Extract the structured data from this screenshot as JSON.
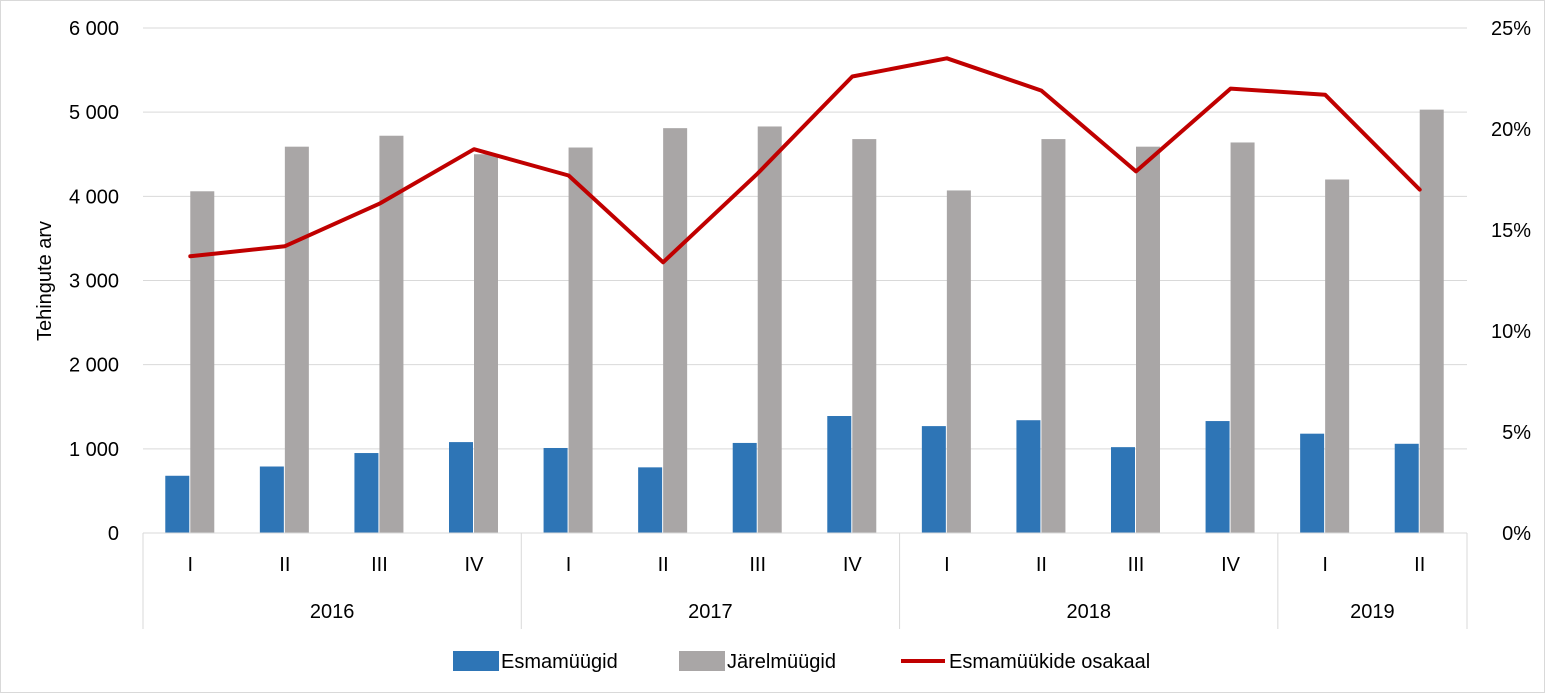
{
  "chart_data": {
    "type": "bar",
    "ylabel": "Tehingute arv",
    "y_left": {
      "range": [
        0,
        6000
      ],
      "ticks": [
        "0",
        "1 000",
        "2 000",
        "3 000",
        "4 000",
        "5 000",
        "6 000"
      ]
    },
    "y_right": {
      "range": [
        0,
        25
      ],
      "ticks": [
        "0%",
        "5%",
        "10%",
        "15%",
        "20%",
        "25%"
      ]
    },
    "grid": true,
    "legend_position": "bottom",
    "categories": [
      "I",
      "II",
      "III",
      "IV",
      "I",
      "II",
      "III",
      "IV",
      "I",
      "II",
      "III",
      "IV",
      "I",
      "II"
    ],
    "groups": [
      {
        "label": "2016",
        "size": 4
      },
      {
        "label": "2017",
        "size": 4
      },
      {
        "label": "2018",
        "size": 4
      },
      {
        "label": "2019",
        "size": 2
      }
    ],
    "series": [
      {
        "name": "Esmamüügid",
        "type": "bar",
        "axis": "left",
        "color": "#2e75b6",
        "values": [
          680,
          790,
          950,
          1080,
          1010,
          780,
          1070,
          1390,
          1270,
          1340,
          1020,
          1330,
          1180,
          1060
        ]
      },
      {
        "name": "Järelmüügid",
        "type": "bar",
        "axis": "left",
        "color": "#a9a6a6",
        "values": [
          4060,
          4590,
          4720,
          4500,
          4580,
          4810,
          4830,
          4680,
          4070,
          4680,
          4590,
          4640,
          4200,
          5030
        ]
      },
      {
        "name": "Esmamüükide osakaal",
        "type": "line",
        "axis": "right",
        "color": "#c00000",
        "values": [
          13.7,
          14.2,
          16.3,
          19.0,
          17.7,
          13.4,
          17.8,
          22.6,
          23.5,
          21.9,
          17.9,
          22.0,
          21.7,
          17.0
        ]
      }
    ]
  }
}
